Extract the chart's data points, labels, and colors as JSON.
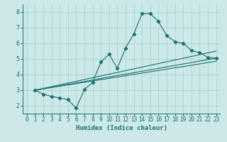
{
  "title": "",
  "xlabel": "Humidex (Indice chaleur)",
  "background_color": "#cce8e8",
  "grid_color": "#aacccc",
  "line_color": "#1a7070",
  "xlim": [
    -0.5,
    23.5
  ],
  "ylim": [
    1.5,
    8.5
  ],
  "xticks": [
    0,
    1,
    2,
    3,
    4,
    5,
    6,
    7,
    8,
    9,
    10,
    11,
    12,
    13,
    14,
    15,
    16,
    17,
    18,
    19,
    20,
    21,
    22,
    23
  ],
  "yticks": [
    2,
    3,
    4,
    5,
    6,
    7,
    8
  ],
  "curve1_x": [
    1,
    2,
    3,
    4,
    5,
    6,
    7,
    8,
    9,
    10,
    11,
    12,
    13,
    14,
    15,
    16,
    17,
    18,
    19,
    20,
    21,
    22,
    23
  ],
  "curve1_y": [
    3.0,
    2.75,
    2.6,
    2.5,
    2.4,
    1.85,
    3.05,
    3.5,
    4.8,
    5.3,
    4.4,
    5.7,
    6.6,
    7.9,
    7.9,
    7.4,
    6.5,
    6.1,
    6.0,
    5.55,
    5.4,
    5.1,
    5.05
  ],
  "line2_x": [
    1,
    23
  ],
  "line2_y": [
    3.0,
    5.05
  ],
  "line3_x": [
    1,
    23
  ],
  "line3_y": [
    3.0,
    4.85
  ],
  "line4_x": [
    1,
    23
  ],
  "line4_y": [
    3.0,
    5.5
  ]
}
